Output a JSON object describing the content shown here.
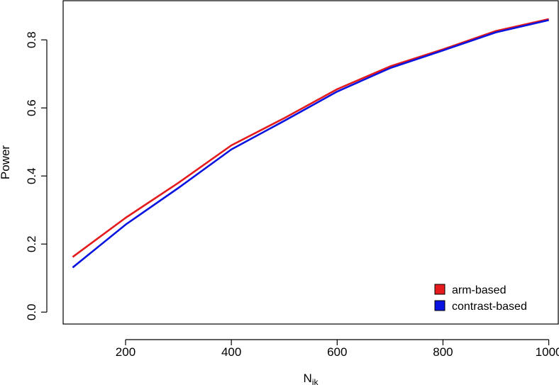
{
  "chart_data": {
    "type": "line",
    "title": "",
    "xlabel": "N",
    "xlabel_subscript": "ik",
    "ylabel": "Power",
    "xlim": [
      82,
      1018
    ],
    "ylim": [
      -0.035,
      0.915
    ],
    "xticks": [
      200,
      400,
      600,
      800,
      1000
    ],
    "yticks": [
      0.0,
      0.2,
      0.4,
      0.6,
      0.8
    ],
    "xtick_labels": [
      "200",
      "400",
      "600",
      "800",
      "1000"
    ],
    "ytick_labels": [
      "0.0",
      "0.2",
      "0.4",
      "0.6",
      "0.8"
    ],
    "x": [
      100,
      200,
      300,
      400,
      500,
      600,
      700,
      800,
      900,
      1000
    ],
    "series": [
      {
        "name": "arm-based",
        "color": "#e41a1c",
        "values": [
          0.162,
          0.277,
          0.38,
          0.49,
          0.57,
          0.655,
          0.722,
          0.772,
          0.826,
          0.861
        ]
      },
      {
        "name": "contrast-based",
        "color": "#0a14e0",
        "values": [
          0.131,
          0.257,
          0.365,
          0.478,
          0.562,
          0.648,
          0.717,
          0.769,
          0.822,
          0.858
        ]
      }
    ],
    "grid": false,
    "legend_position": "bottom-right"
  }
}
